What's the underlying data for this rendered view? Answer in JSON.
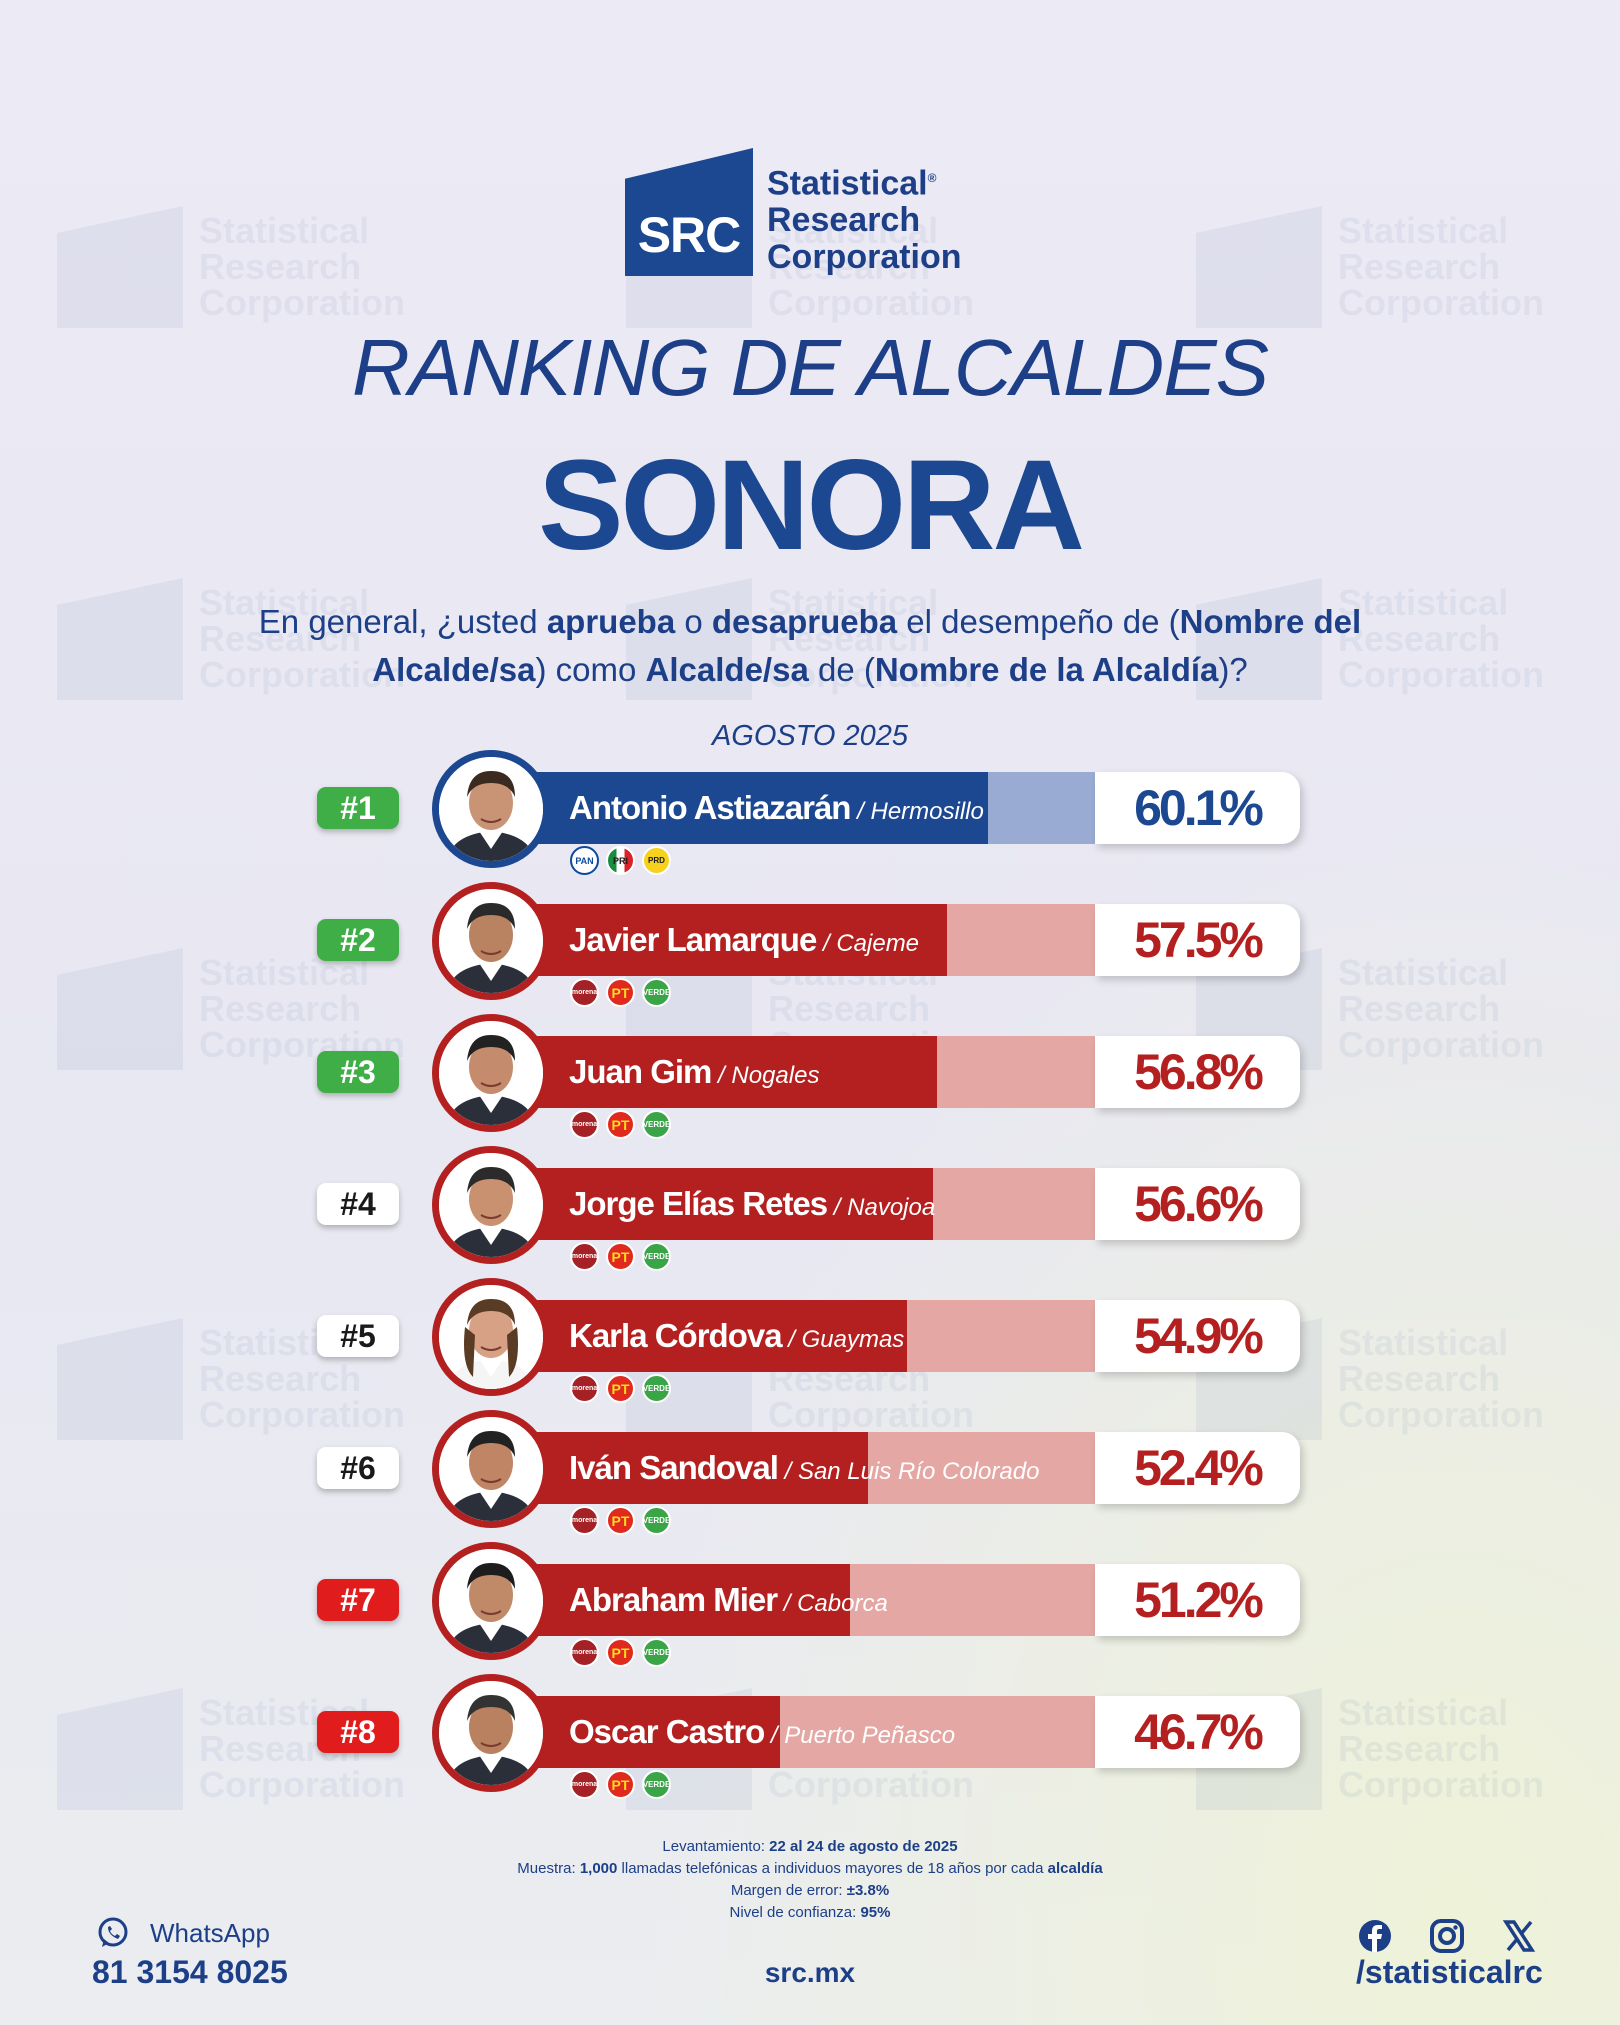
{
  "brand": {
    "abbr": "SRC",
    "name_line1": "Statistical",
    "name_line2": "Research",
    "name_line3": "Corporation",
    "registered": "®",
    "primary_color": "#1c4791"
  },
  "title": "RANKING DE ALCALDES",
  "state": "SONORA",
  "question": {
    "p1": "En general, ¿usted ",
    "b1": "aprueba",
    "p2": " o ",
    "b2": "desaprueba",
    "p3": " el desempeño de (",
    "b3": "Nombre del Alcalde/sa",
    "p4": ") como ",
    "b4": "Alcalde/sa",
    "p5": " de (",
    "b5": "Nombre de la Alcaldía",
    "p6": ")?"
  },
  "period": "AGOSTO 2025",
  "colors": {
    "pan_bar": "#1c4791",
    "pan_bar_light": "#9aabd3",
    "morena_bar": "#b3201f",
    "morena_bar_light": "#e4a7a4",
    "rank_green": "#3fae46",
    "rank_red": "#e01c1c"
  },
  "chart_data": {
    "type": "bar",
    "orientation": "horizontal",
    "categories": [
      "Antonio Astiazarán",
      "Javier Lamarque",
      "Juan Gim",
      "Jorge Elías Retes",
      "Karla Córdova",
      "Iván Sandoval",
      "Abraham Mier",
      "Oscar Castro"
    ],
    "values": [
      60.1,
      57.5,
      56.8,
      56.6,
      54.9,
      52.4,
      51.2,
      46.7
    ],
    "unit": "%",
    "rows": [
      {
        "rank": "#1",
        "rank_style": "green",
        "name": "Antonio Astiazarán",
        "city": "Hermosillo",
        "pct": 60.1,
        "pct_label": "60.1%",
        "coalition": "pan",
        "parties": [
          "PAN",
          "PRI",
          "PRD"
        ]
      },
      {
        "rank": "#2",
        "rank_style": "green",
        "name": "Javier Lamarque",
        "city": "Cajeme",
        "pct": 57.5,
        "pct_label": "57.5%",
        "coalition": "morena",
        "parties": [
          "morena",
          "PT",
          "VERDE"
        ]
      },
      {
        "rank": "#3",
        "rank_style": "green",
        "name": "Juan Gim",
        "city": "Nogales",
        "pct": 56.8,
        "pct_label": "56.8%",
        "coalition": "morena",
        "parties": [
          "morena",
          "PT",
          "VERDE"
        ]
      },
      {
        "rank": "#4",
        "rank_style": "white",
        "name": "Jorge Elías Retes",
        "city": "Navojoa",
        "pct": 56.6,
        "pct_label": "56.6%",
        "coalition": "morena",
        "parties": [
          "morena",
          "PT",
          "VERDE"
        ]
      },
      {
        "rank": "#5",
        "rank_style": "white",
        "name": "Karla Córdova",
        "city": "Guaymas",
        "pct": 54.9,
        "pct_label": "54.9%",
        "coalition": "morena",
        "parties": [
          "morena",
          "PT",
          "VERDE"
        ]
      },
      {
        "rank": "#6",
        "rank_style": "white",
        "name": "Iván Sandoval",
        "city": "San Luis Río Colorado",
        "pct": 52.4,
        "pct_label": "52.4%",
        "coalition": "morena",
        "parties": [
          "morena",
          "PT",
          "VERDE"
        ]
      },
      {
        "rank": "#7",
        "rank_style": "red",
        "name": "Abraham Mier",
        "city": "Caborca",
        "pct": 51.2,
        "pct_label": "51.2%",
        "coalition": "morena",
        "parties": [
          "morena",
          "PT",
          "VERDE"
        ]
      },
      {
        "rank": "#8",
        "rank_style": "red",
        "name": "Oscar Castro",
        "city": "Puerto Peñasco",
        "pct": 46.7,
        "pct_label": "46.7%",
        "coalition": "morena",
        "parties": [
          "morena",
          "PT",
          "VERDE"
        ]
      }
    ]
  },
  "methodology": {
    "l1_label": "Levantamiento: ",
    "l1_value": "22 al 24 de agosto de 2025",
    "l2_label": "Muestra: ",
    "l2_value": "1,000",
    "l2_mid": " llamadas telefónicas a individuos mayores de 18 años por cada ",
    "l2_end": "alcaldía",
    "l3_label": "Margen de error: ",
    "l3_value": "±3.8%",
    "l4_label": "Nivel de confianza: ",
    "l4_value": "95%"
  },
  "footer": {
    "whatsapp_label": "WhatsApp",
    "whatsapp_icon": "whatsapp-icon",
    "phone": "81 3154 8025",
    "site": "src.mx",
    "social_icons": [
      "facebook-icon",
      "instagram-icon",
      "x-icon"
    ],
    "handle": "/statisticalrc"
  }
}
